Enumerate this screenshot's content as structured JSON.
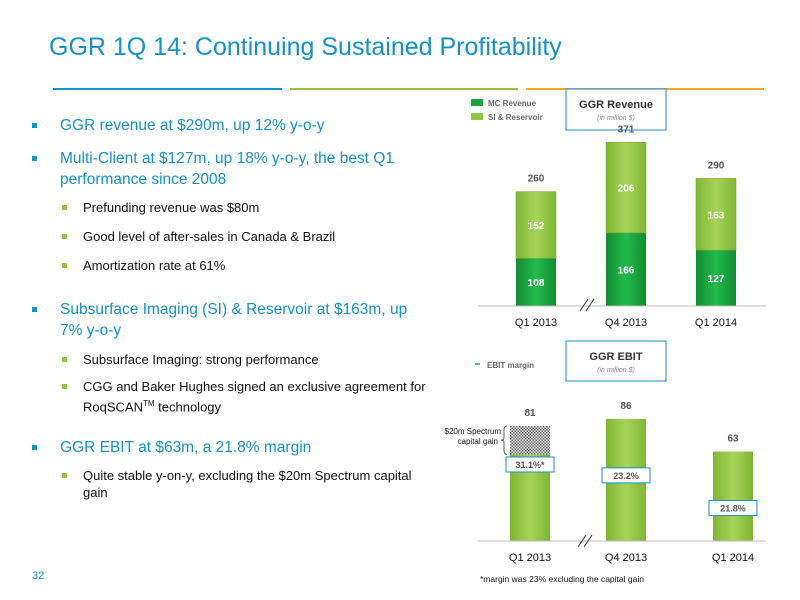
{
  "title": "GGR 1Q 14: Continuing Sustained Profitability",
  "bullets": [
    {
      "text": "GGR revenue at $290m, up 12% y-o-y",
      "sub": []
    },
    {
      "text": "Multi-Client at $127m, up 18% y-o-y, the best Q1 performance since 2008",
      "sub": [
        "Prefunding revenue was $80m",
        "Good level of after-sales in Canada & Brazil",
        "Amortization rate at 61%"
      ]
    },
    {
      "text": "Subsurface Imaging (SI) & Reservoir at $163m, up 7% y-o-y",
      "sub": [
        "Subsurface Imaging: strong performance",
        {
          "before": "CGG and Baker Hughes signed an exclusive agreement for RoqSCAN",
          "sup": "TM",
          "after": " technology"
        }
      ]
    },
    {
      "text": "GGR EBIT at $63m, a 21.8% margin",
      "sub": [
        "Quite stable y-on-y, excluding the $20m Spectrum capital gain"
      ]
    }
  ],
  "slide_number": "32",
  "footnote": "*margin was 23% excluding the capital gain",
  "colors": {
    "title_blue": "#1591c9",
    "mc_green": "#1aa63f",
    "si_green": "#8ec641",
    "accent_orange": "#f7a823"
  },
  "chart_data": [
    {
      "type": "bar",
      "stacked": true,
      "title": "GGR Revenue",
      "subtitle": "(in million $)",
      "categories": [
        "Q1 2013",
        "Q4 2013",
        "Q1 2014"
      ],
      "series": [
        {
          "name": "MC Revenue",
          "values": [
            108,
            166,
            127
          ],
          "color": "#1aa63f"
        },
        {
          "name": "SI & Reservoir",
          "values": [
            152,
            206,
            163
          ],
          "color": "#8ec641"
        }
      ],
      "totals": [
        260,
        371,
        290
      ],
      "axis_break": "between Q1 2013 and Q4 2013",
      "legend": "top-left",
      "ylim": [
        0,
        400
      ],
      "grid": false
    },
    {
      "type": "bar",
      "title": "GGR EBIT",
      "subtitle": "(in million $)",
      "categories": [
        "Q1 2013",
        "Q4 2013",
        "Q1 2014"
      ],
      "values": [
        81,
        86,
        63
      ],
      "margin_labels": [
        "31.1%*",
        "23.2%",
        "21.8%"
      ],
      "legend_label": "EBIT margin",
      "annotation": {
        "text": [
          "$20m Spectrum",
          "capital gain"
        ],
        "category": "Q1 2013",
        "value": 20
      },
      "axis_break": "between Q1 2013 and Q4 2013",
      "ylim": [
        0,
        100
      ],
      "grid": false
    }
  ]
}
